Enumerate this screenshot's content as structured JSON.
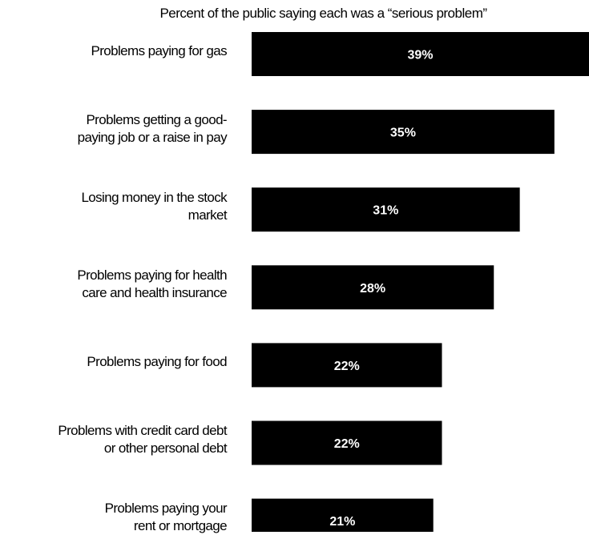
{
  "chart_data": {
    "type": "bar",
    "orientation": "horizontal",
    "title": "",
    "subtitle": "Percent of the public saying each was a “serious problem”",
    "categories": [
      "Problems paying for gas",
      "Problems getting a good-\npaying job or a raise in pay",
      "Losing money in the stock\nmarket",
      "Problems paying for health\ncare and health insurance",
      "Problems paying for food",
      "Problems with credit card debt\nor other personal debt",
      "Problems paying your\nrent or mortgage"
    ],
    "values": [
      39,
      35,
      31,
      28,
      22,
      22,
      21
    ],
    "data_labels": [
      "39%",
      "35%",
      "31%",
      "28%",
      "22%",
      "22%",
      "21%"
    ],
    "xlim": [
      0,
      39
    ],
    "grid": false,
    "legend": "none",
    "bar_color": "#000000",
    "label_color": "#ffffff"
  }
}
